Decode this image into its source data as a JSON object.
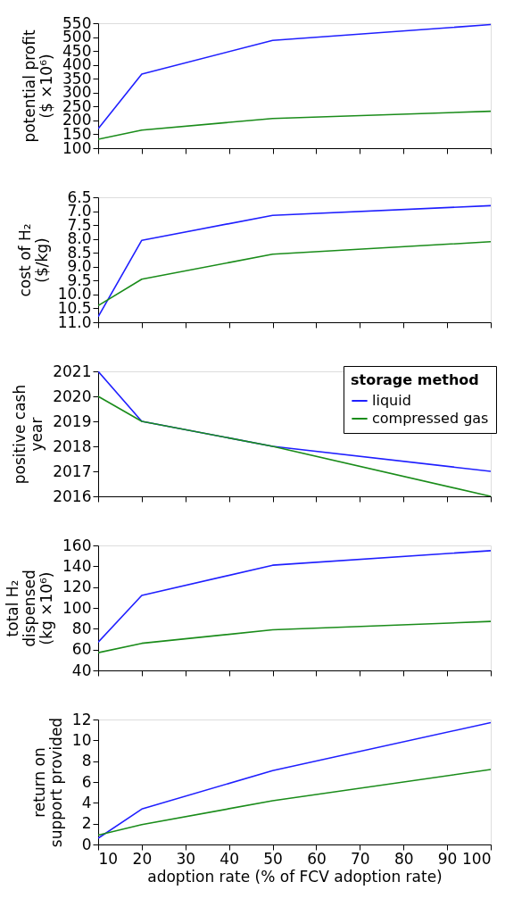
{
  "chart_data": [
    {
      "type": "line",
      "ylabel": "potential profit\n($ ×10⁶)",
      "x": [
        10,
        20,
        50,
        100
      ],
      "xlim": [
        10,
        100
      ],
      "xticks": [
        10,
        20,
        30,
        40,
        50,
        60,
        70,
        80,
        90,
        100
      ],
      "ylim": [
        100,
        550
      ],
      "yticks": [
        100,
        150,
        200,
        250,
        300,
        350,
        400,
        450,
        500,
        550
      ],
      "tick_labels": "y",
      "line_style": "solid",
      "grid": false,
      "legend": false,
      "series": [
        {
          "color": "#1f1fff",
          "values": [
            170,
            367,
            488,
            545
          ]
        },
        {
          "color": "#1a8c1a",
          "values": [
            132,
            165,
            207,
            233
          ]
        }
      ]
    },
    {
      "type": "line",
      "ylabel": "cost of H₂\n($/kg)",
      "x": [
        10,
        20,
        50,
        100
      ],
      "xlim": [
        10,
        100
      ],
      "xticks": [
        10,
        20,
        30,
        40,
        50,
        60,
        70,
        80,
        90,
        100
      ],
      "ylim": [
        11.0,
        6.5
      ],
      "yticks": [
        {
          "value": 6.5,
          "label": "6.5"
        },
        {
          "value": 7,
          "label": "7.0"
        },
        {
          "value": 7.5,
          "label": "7.5"
        },
        {
          "value": 8,
          "label": "8.0"
        },
        {
          "value": 8.5,
          "label": "8.5"
        },
        {
          "value": 9,
          "label": "9.0"
        },
        {
          "value": 9.5,
          "label": "9.5"
        },
        {
          "value": 10,
          "label": "10.0"
        },
        {
          "value": 10.5,
          "label": "10.5"
        },
        {
          "value": 11,
          "label": "11.0"
        }
      ],
      "tick_labels": "y",
      "line_style": "solid",
      "grid": false,
      "legend": false,
      "series": [
        {
          "color": "#1f1fff",
          "values": [
            10.8,
            8.05,
            7.15,
            6.8
          ]
        },
        {
          "color": "#1a8c1a",
          "values": [
            10.4,
            9.45,
            8.55,
            8.1
          ]
        }
      ]
    },
    {
      "type": "line",
      "ylabel": "positive cash\nyear",
      "x": [
        10,
        20,
        50,
        100
      ],
      "xlim": [
        10,
        100
      ],
      "xticks": [
        10,
        20,
        30,
        40,
        50,
        60,
        70,
        80,
        90,
        100
      ],
      "ylim": [
        2016,
        2021
      ],
      "yticks": [
        2016,
        2017,
        2018,
        2019,
        2020,
        2021
      ],
      "tick_labels": "y",
      "line_style": "solid",
      "grid": false,
      "legend": "top right",
      "legend_title": "storage method",
      "series": [
        {
          "name": "liquid",
          "color": "#1f1fff",
          "values": [
            2021,
            2019,
            2018,
            2017
          ]
        },
        {
          "name": "compressed gas",
          "color": "#1a8c1a",
          "values": [
            2020,
            2019,
            2018,
            2016
          ]
        }
      ]
    },
    {
      "type": "line",
      "ylabel": "total H₂\ndispensed\n(kg ×10⁶)",
      "x": [
        10,
        20,
        50,
        100
      ],
      "xlim": [
        10,
        100
      ],
      "xticks": [
        10,
        20,
        30,
        40,
        50,
        60,
        70,
        80,
        90,
        100
      ],
      "ylim": [
        40,
        160
      ],
      "yticks": [
        40,
        60,
        80,
        100,
        120,
        140,
        160
      ],
      "tick_labels": "y",
      "line_style": "solid",
      "grid": false,
      "legend": false,
      "series": [
        {
          "color": "#1f1fff",
          "values": [
            67,
            112,
            141,
            155
          ]
        },
        {
          "color": "#1a8c1a",
          "values": [
            57,
            66,
            79,
            87
          ]
        }
      ]
    },
    {
      "type": "line",
      "ylabel": "return on\nsupport provided",
      "xlabel": "adoption rate (% of FCV adoption rate)",
      "x": [
        10,
        20,
        50,
        100
      ],
      "xlim": [
        10,
        100
      ],
      "xticks": [
        10,
        20,
        30,
        40,
        50,
        60,
        70,
        80,
        90,
        100
      ],
      "ylim": [
        0,
        12
      ],
      "yticks": [
        0,
        2,
        4,
        6,
        8,
        10,
        12
      ],
      "line_style": "solid",
      "grid": false,
      "legend": false,
      "series": [
        {
          "color": "#1f1fff",
          "values": [
            0.6,
            3.4,
            7.1,
            11.7
          ]
        },
        {
          "color": "#1a8c1a",
          "values": [
            0.9,
            1.9,
            4.2,
            7.2
          ]
        }
      ]
    }
  ]
}
